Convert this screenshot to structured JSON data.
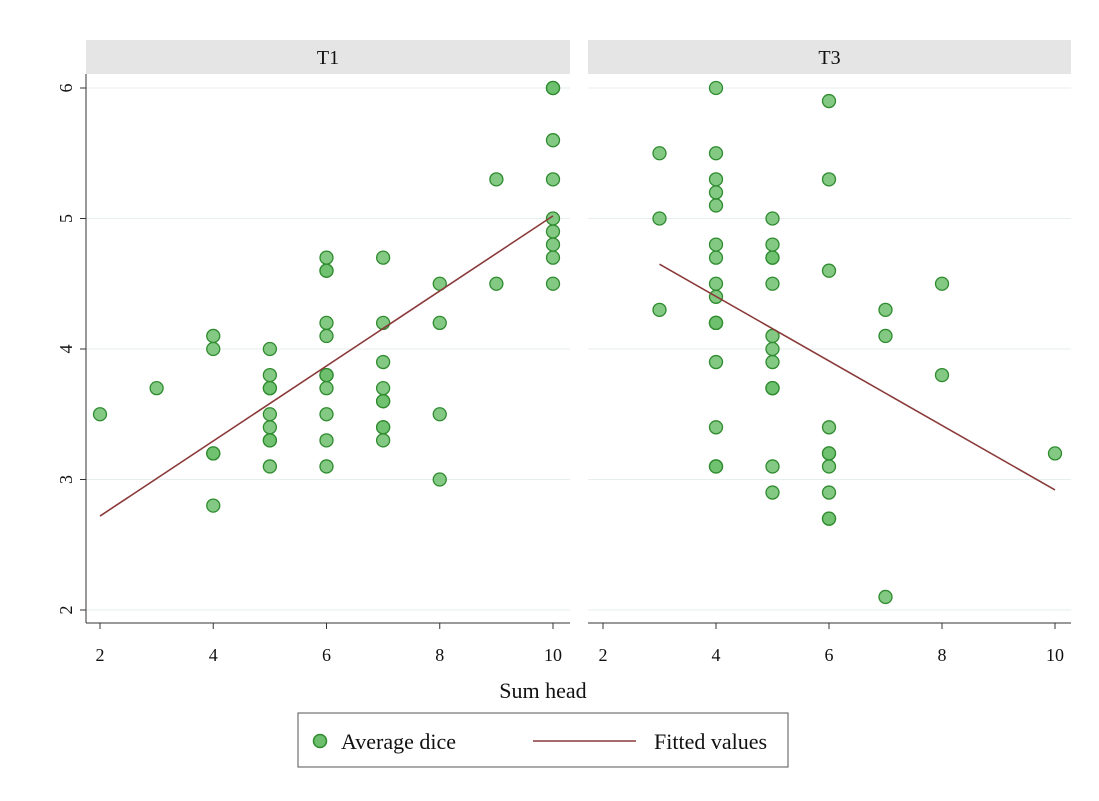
{
  "chart_data": {
    "type": "scatter",
    "xlabel": "Sum head",
    "ylabel": "",
    "xlim": [
      2,
      10
    ],
    "ylim": [
      2,
      6
    ],
    "x_ticks": [
      2,
      4,
      6,
      8,
      10
    ],
    "y_ticks": [
      2,
      3,
      4,
      5,
      6
    ],
    "grid": "horizontal",
    "legend_position": "bottom",
    "legend": [
      {
        "label": "Average dice",
        "kind": "marker",
        "color": "#5bb45b"
      },
      {
        "label": "Fitted values",
        "kind": "line",
        "color": "#8b3a3a"
      }
    ],
    "colors": {
      "marker_fill": "#6dbf6d",
      "marker_stroke": "#2e8b2e",
      "fit_line": "#8b3a3a",
      "panel_header": "#e5e5e5",
      "grid": "#e6eeee"
    },
    "panels": [
      {
        "title": "T1",
        "points": [
          [
            2,
            3.5
          ],
          [
            3,
            3.7
          ],
          [
            4,
            4.1
          ],
          [
            4,
            4.0
          ],
          [
            4,
            3.2
          ],
          [
            4,
            3.2
          ],
          [
            4,
            2.8
          ],
          [
            5,
            4.0
          ],
          [
            5,
            3.8
          ],
          [
            5,
            3.7
          ],
          [
            5,
            3.7
          ],
          [
            5,
            3.5
          ],
          [
            5,
            3.4
          ],
          [
            5,
            3.3
          ],
          [
            5,
            3.3
          ],
          [
            5,
            3.1
          ],
          [
            6,
            4.7
          ],
          [
            6,
            4.6
          ],
          [
            6,
            4.6
          ],
          [
            6,
            4.2
          ],
          [
            6,
            4.1
          ],
          [
            6,
            3.8
          ],
          [
            6,
            3.8
          ],
          [
            6,
            3.8
          ],
          [
            6,
            3.7
          ],
          [
            6,
            3.5
          ],
          [
            6,
            3.3
          ],
          [
            6,
            3.1
          ],
          [
            7,
            4.7
          ],
          [
            7,
            4.2
          ],
          [
            7,
            3.9
          ],
          [
            7,
            3.7
          ],
          [
            7,
            3.6
          ],
          [
            7,
            3.6
          ],
          [
            7,
            3.4
          ],
          [
            7,
            3.4
          ],
          [
            7,
            3.3
          ],
          [
            8,
            4.5
          ],
          [
            8,
            4.2
          ],
          [
            8,
            3.5
          ],
          [
            8,
            3.0
          ],
          [
            9,
            5.3
          ],
          [
            9,
            4.5
          ],
          [
            10,
            6.0
          ],
          [
            10,
            6.0
          ],
          [
            10,
            6.0
          ],
          [
            10,
            5.6
          ],
          [
            10,
            5.3
          ],
          [
            10,
            5.0
          ],
          [
            10,
            4.9
          ],
          [
            10,
            4.8
          ],
          [
            10,
            4.7
          ],
          [
            10,
            4.5
          ]
        ],
        "fit": [
          [
            2,
            2.72
          ],
          [
            10,
            5.02
          ]
        ]
      },
      {
        "title": "T3",
        "points": [
          [
            3,
            5.5
          ],
          [
            3,
            5.0
          ],
          [
            3,
            4.3
          ],
          [
            4,
            6.0
          ],
          [
            4,
            5.5
          ],
          [
            4,
            5.3
          ],
          [
            4,
            5.2
          ],
          [
            4,
            5.1
          ],
          [
            4,
            4.8
          ],
          [
            4,
            4.7
          ],
          [
            4,
            4.5
          ],
          [
            4,
            4.4
          ],
          [
            4,
            4.2
          ],
          [
            4,
            4.2
          ],
          [
            4,
            4.2
          ],
          [
            4,
            3.9
          ],
          [
            4,
            3.4
          ],
          [
            4,
            3.1
          ],
          [
            4,
            3.1
          ],
          [
            5,
            5.0
          ],
          [
            5,
            4.8
          ],
          [
            5,
            4.7
          ],
          [
            5,
            4.7
          ],
          [
            5,
            4.5
          ],
          [
            5,
            4.1
          ],
          [
            5,
            4.0
          ],
          [
            5,
            3.9
          ],
          [
            5,
            3.7
          ],
          [
            5,
            3.7
          ],
          [
            5,
            3.7
          ],
          [
            5,
            3.1
          ],
          [
            5,
            2.9
          ],
          [
            6,
            5.9
          ],
          [
            6,
            5.3
          ],
          [
            6,
            4.6
          ],
          [
            6,
            3.4
          ],
          [
            6,
            3.2
          ],
          [
            6,
            3.2
          ],
          [
            6,
            3.1
          ],
          [
            6,
            2.9
          ],
          [
            6,
            2.7
          ],
          [
            6,
            2.7
          ],
          [
            7,
            4.3
          ],
          [
            7,
            4.1
          ],
          [
            7,
            2.1
          ],
          [
            8,
            4.5
          ],
          [
            8,
            3.8
          ],
          [
            10,
            3.2
          ]
        ],
        "fit": [
          [
            3,
            4.65
          ],
          [
            10,
            2.92
          ]
        ]
      }
    ]
  }
}
